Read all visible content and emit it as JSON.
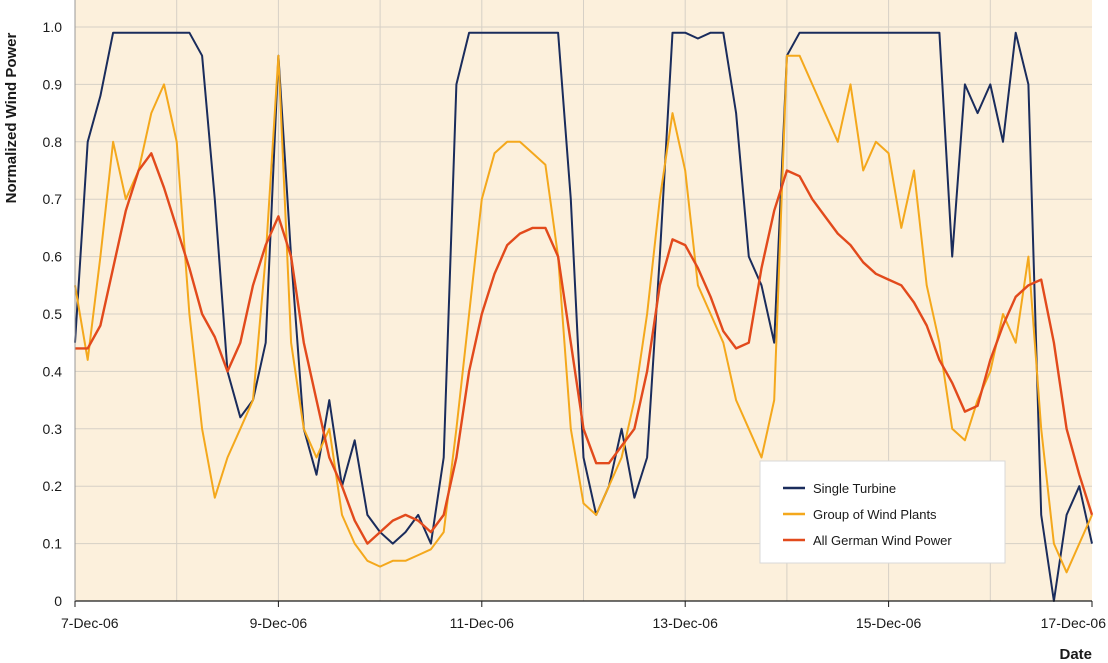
{
  "chart_data": {
    "type": "line",
    "title": "",
    "xlabel": "Date",
    "ylabel": "Normalized Wind Power",
    "xlim": [
      "2006-12-07",
      "2006-12-17"
    ],
    "ylim": [
      0,
      1.0
    ],
    "x_ticks": [
      "7-Dec-06",
      "9-Dec-06",
      "11-Dec-06",
      "13-Dec-06",
      "15-Dec-06",
      "17-Dec-06"
    ],
    "y_ticks": [
      "0",
      "0.1",
      "0.2",
      "0.3",
      "0.4",
      "0.5",
      "0.6",
      "0.7",
      "0.8",
      "0.9",
      "1.0"
    ],
    "grid": true,
    "legend_position": "bottom-right",
    "background_color": "#fcf0dc",
    "series": [
      {
        "name": "Single Turbine",
        "color": "#1a2c5c",
        "x": [
          "2006-12-07T00:00",
          "2006-12-07T03:00",
          "2006-12-07T06:00",
          "2006-12-07T09:00",
          "2006-12-07T12:00",
          "2006-12-07T15:00",
          "2006-12-07T18:00",
          "2006-12-07T21:00",
          "2006-12-08T00:00",
          "2006-12-08T03:00",
          "2006-12-08T06:00",
          "2006-12-08T09:00",
          "2006-12-08T12:00",
          "2006-12-08T15:00",
          "2006-12-08T18:00",
          "2006-12-08T21:00",
          "2006-12-09T00:00",
          "2006-12-09T03:00",
          "2006-12-09T06:00",
          "2006-12-09T09:00",
          "2006-12-09T12:00",
          "2006-12-09T15:00",
          "2006-12-09T18:00",
          "2006-12-09T21:00",
          "2006-12-10T00:00",
          "2006-12-10T03:00",
          "2006-12-10T06:00",
          "2006-12-10T09:00",
          "2006-12-10T12:00",
          "2006-12-10T15:00",
          "2006-12-10T18:00",
          "2006-12-10T21:00",
          "2006-12-11T00:00",
          "2006-12-11T03:00",
          "2006-12-11T06:00",
          "2006-12-11T09:00",
          "2006-12-11T12:00",
          "2006-12-11T15:00",
          "2006-12-11T18:00",
          "2006-12-11T21:00",
          "2006-12-12T00:00",
          "2006-12-12T03:00",
          "2006-12-12T06:00",
          "2006-12-12T09:00",
          "2006-12-12T12:00",
          "2006-12-12T15:00",
          "2006-12-12T18:00",
          "2006-12-12T21:00",
          "2006-12-13T00:00",
          "2006-12-13T03:00",
          "2006-12-13T06:00",
          "2006-12-13T09:00",
          "2006-12-13T12:00",
          "2006-12-13T15:00",
          "2006-12-13T18:00",
          "2006-12-13T21:00",
          "2006-12-14T00:00",
          "2006-12-14T03:00",
          "2006-12-14T06:00",
          "2006-12-14T09:00",
          "2006-12-14T12:00",
          "2006-12-14T15:00",
          "2006-12-14T18:00",
          "2006-12-14T21:00",
          "2006-12-15T00:00",
          "2006-12-15T03:00",
          "2006-12-15T06:00",
          "2006-12-15T09:00",
          "2006-12-15T12:00",
          "2006-12-15T15:00",
          "2006-12-15T18:00",
          "2006-12-15T21:00",
          "2006-12-16T00:00",
          "2006-12-16T03:00",
          "2006-12-16T06:00",
          "2006-12-16T09:00",
          "2006-12-16T12:00",
          "2006-12-16T15:00",
          "2006-12-16T18:00",
          "2006-12-16T21:00",
          "2006-12-17T00:00"
        ],
        "values": [
          0.45,
          0.8,
          0.88,
          0.99,
          0.99,
          0.99,
          0.99,
          0.99,
          0.99,
          0.99,
          0.95,
          0.7,
          0.4,
          0.32,
          0.35,
          0.45,
          0.95,
          0.6,
          0.3,
          0.22,
          0.35,
          0.2,
          0.28,
          0.15,
          0.12,
          0.1,
          0.12,
          0.15,
          0.1,
          0.25,
          0.9,
          0.99,
          0.99,
          0.99,
          0.99,
          0.99,
          0.99,
          0.99,
          0.99,
          0.7,
          0.25,
          0.15,
          0.2,
          0.3,
          0.18,
          0.25,
          0.6,
          0.99,
          0.99,
          0.98,
          0.99,
          0.99,
          0.85,
          0.6,
          0.55,
          0.45,
          0.95,
          0.99,
          0.99,
          0.99,
          0.99,
          0.99,
          0.99,
          0.99,
          0.99,
          0.99,
          0.99,
          0.99,
          0.99,
          0.6,
          0.9,
          0.85,
          0.9,
          0.8,
          0.99,
          0.9,
          0.15,
          0.0,
          0.15,
          0.2,
          0.1
        ]
      },
      {
        "name": "Group of Wind Plants",
        "color": "#f4a81c",
        "x": [
          "2006-12-07T00:00",
          "2006-12-07T03:00",
          "2006-12-07T06:00",
          "2006-12-07T09:00",
          "2006-12-07T12:00",
          "2006-12-07T15:00",
          "2006-12-07T18:00",
          "2006-12-07T21:00",
          "2006-12-08T00:00",
          "2006-12-08T03:00",
          "2006-12-08T06:00",
          "2006-12-08T09:00",
          "2006-12-08T12:00",
          "2006-12-08T15:00",
          "2006-12-08T18:00",
          "2006-12-08T21:00",
          "2006-12-09T00:00",
          "2006-12-09T03:00",
          "2006-12-09T06:00",
          "2006-12-09T09:00",
          "2006-12-09T12:00",
          "2006-12-09T15:00",
          "2006-12-09T18:00",
          "2006-12-09T21:00",
          "2006-12-10T00:00",
          "2006-12-10T03:00",
          "2006-12-10T06:00",
          "2006-12-10T09:00",
          "2006-12-10T12:00",
          "2006-12-10T15:00",
          "2006-12-10T18:00",
          "2006-12-10T21:00",
          "2006-12-11T00:00",
          "2006-12-11T03:00",
          "2006-12-11T06:00",
          "2006-12-11T09:00",
          "2006-12-11T12:00",
          "2006-12-11T15:00",
          "2006-12-11T18:00",
          "2006-12-11T21:00",
          "2006-12-12T00:00",
          "2006-12-12T03:00",
          "2006-12-12T06:00",
          "2006-12-12T09:00",
          "2006-12-12T12:00",
          "2006-12-12T15:00",
          "2006-12-12T18:00",
          "2006-12-12T21:00",
          "2006-12-13T00:00",
          "2006-12-13T03:00",
          "2006-12-13T06:00",
          "2006-12-13T09:00",
          "2006-12-13T12:00",
          "2006-12-13T15:00",
          "2006-12-13T18:00",
          "2006-12-13T21:00",
          "2006-12-14T00:00",
          "2006-12-14T03:00",
          "2006-12-14T06:00",
          "2006-12-14T09:00",
          "2006-12-14T12:00",
          "2006-12-14T15:00",
          "2006-12-14T18:00",
          "2006-12-14T21:00",
          "2006-12-15T00:00",
          "2006-12-15T03:00",
          "2006-12-15T06:00",
          "2006-12-15T09:00",
          "2006-12-15T12:00",
          "2006-12-15T15:00",
          "2006-12-15T18:00",
          "2006-12-15T21:00",
          "2006-12-16T00:00",
          "2006-12-16T03:00",
          "2006-12-16T06:00",
          "2006-12-16T09:00",
          "2006-12-16T12:00",
          "2006-12-16T15:00",
          "2006-12-16T18:00",
          "2006-12-16T21:00",
          "2006-12-17T00:00"
        ],
        "values": [
          0.55,
          0.42,
          0.6,
          0.8,
          0.7,
          0.75,
          0.85,
          0.9,
          0.8,
          0.5,
          0.3,
          0.18,
          0.25,
          0.3,
          0.35,
          0.6,
          0.95,
          0.45,
          0.3,
          0.25,
          0.3,
          0.15,
          0.1,
          0.07,
          0.06,
          0.07,
          0.07,
          0.08,
          0.09,
          0.12,
          0.3,
          0.5,
          0.7,
          0.78,
          0.8,
          0.8,
          0.78,
          0.76,
          0.6,
          0.3,
          0.17,
          0.15,
          0.2,
          0.25,
          0.35,
          0.5,
          0.7,
          0.85,
          0.75,
          0.55,
          0.5,
          0.45,
          0.35,
          0.3,
          0.25,
          0.35,
          0.95,
          0.95,
          0.9,
          0.85,
          0.8,
          0.9,
          0.75,
          0.8,
          0.78,
          0.65,
          0.75,
          0.55,
          0.45,
          0.3,
          0.28,
          0.35,
          0.4,
          0.5,
          0.45,
          0.6,
          0.3,
          0.1,
          0.05,
          0.1,
          0.15
        ]
      },
      {
        "name": "All German Wind Power",
        "color": "#e24a1c",
        "x": [
          "2006-12-07T00:00",
          "2006-12-07T03:00",
          "2006-12-07T06:00",
          "2006-12-07T09:00",
          "2006-12-07T12:00",
          "2006-12-07T15:00",
          "2006-12-07T18:00",
          "2006-12-07T21:00",
          "2006-12-08T00:00",
          "2006-12-08T03:00",
          "2006-12-08T06:00",
          "2006-12-08T09:00",
          "2006-12-08T12:00",
          "2006-12-08T15:00",
          "2006-12-08T18:00",
          "2006-12-08T21:00",
          "2006-12-09T00:00",
          "2006-12-09T03:00",
          "2006-12-09T06:00",
          "2006-12-09T09:00",
          "2006-12-09T12:00",
          "2006-12-09T15:00",
          "2006-12-09T18:00",
          "2006-12-09T21:00",
          "2006-12-10T00:00",
          "2006-12-10T03:00",
          "2006-12-10T06:00",
          "2006-12-10T09:00",
          "2006-12-10T12:00",
          "2006-12-10T15:00",
          "2006-12-10T18:00",
          "2006-12-10T21:00",
          "2006-12-11T00:00",
          "2006-12-11T03:00",
          "2006-12-11T06:00",
          "2006-12-11T09:00",
          "2006-12-11T12:00",
          "2006-12-11T15:00",
          "2006-12-11T18:00",
          "2006-12-11T21:00",
          "2006-12-12T00:00",
          "2006-12-12T03:00",
          "2006-12-12T06:00",
          "2006-12-12T09:00",
          "2006-12-12T12:00",
          "2006-12-12T15:00",
          "2006-12-12T18:00",
          "2006-12-12T21:00",
          "2006-12-13T00:00",
          "2006-12-13T03:00",
          "2006-12-13T06:00",
          "2006-12-13T09:00",
          "2006-12-13T12:00",
          "2006-12-13T15:00",
          "2006-12-13T18:00",
          "2006-12-13T21:00",
          "2006-12-14T00:00",
          "2006-12-14T03:00",
          "2006-12-14T06:00",
          "2006-12-14T09:00",
          "2006-12-14T12:00",
          "2006-12-14T15:00",
          "2006-12-14T18:00",
          "2006-12-14T21:00",
          "2006-12-15T00:00",
          "2006-12-15T03:00",
          "2006-12-15T06:00",
          "2006-12-15T09:00",
          "2006-12-15T12:00",
          "2006-12-15T15:00",
          "2006-12-15T18:00",
          "2006-12-15T21:00",
          "2006-12-16T00:00",
          "2006-12-16T03:00",
          "2006-12-16T06:00",
          "2006-12-16T09:00",
          "2006-12-16T12:00",
          "2006-12-16T15:00",
          "2006-12-16T18:00",
          "2006-12-16T21:00",
          "2006-12-17T00:00"
        ],
        "values": [
          0.44,
          0.44,
          0.48,
          0.58,
          0.68,
          0.75,
          0.78,
          0.72,
          0.65,
          0.58,
          0.5,
          0.46,
          0.4,
          0.45,
          0.55,
          0.62,
          0.67,
          0.6,
          0.45,
          0.35,
          0.25,
          0.2,
          0.14,
          0.1,
          0.12,
          0.14,
          0.15,
          0.14,
          0.12,
          0.15,
          0.25,
          0.4,
          0.5,
          0.57,
          0.62,
          0.64,
          0.65,
          0.65,
          0.6,
          0.45,
          0.3,
          0.24,
          0.24,
          0.27,
          0.3,
          0.4,
          0.55,
          0.63,
          0.62,
          0.58,
          0.53,
          0.47,
          0.44,
          0.45,
          0.58,
          0.68,
          0.75,
          0.74,
          0.7,
          0.67,
          0.64,
          0.62,
          0.59,
          0.57,
          0.56,
          0.55,
          0.52,
          0.48,
          0.42,
          0.38,
          0.33,
          0.34,
          0.42,
          0.48,
          0.53,
          0.55,
          0.56,
          0.45,
          0.3,
          0.22,
          0.15
        ]
      }
    ]
  }
}
